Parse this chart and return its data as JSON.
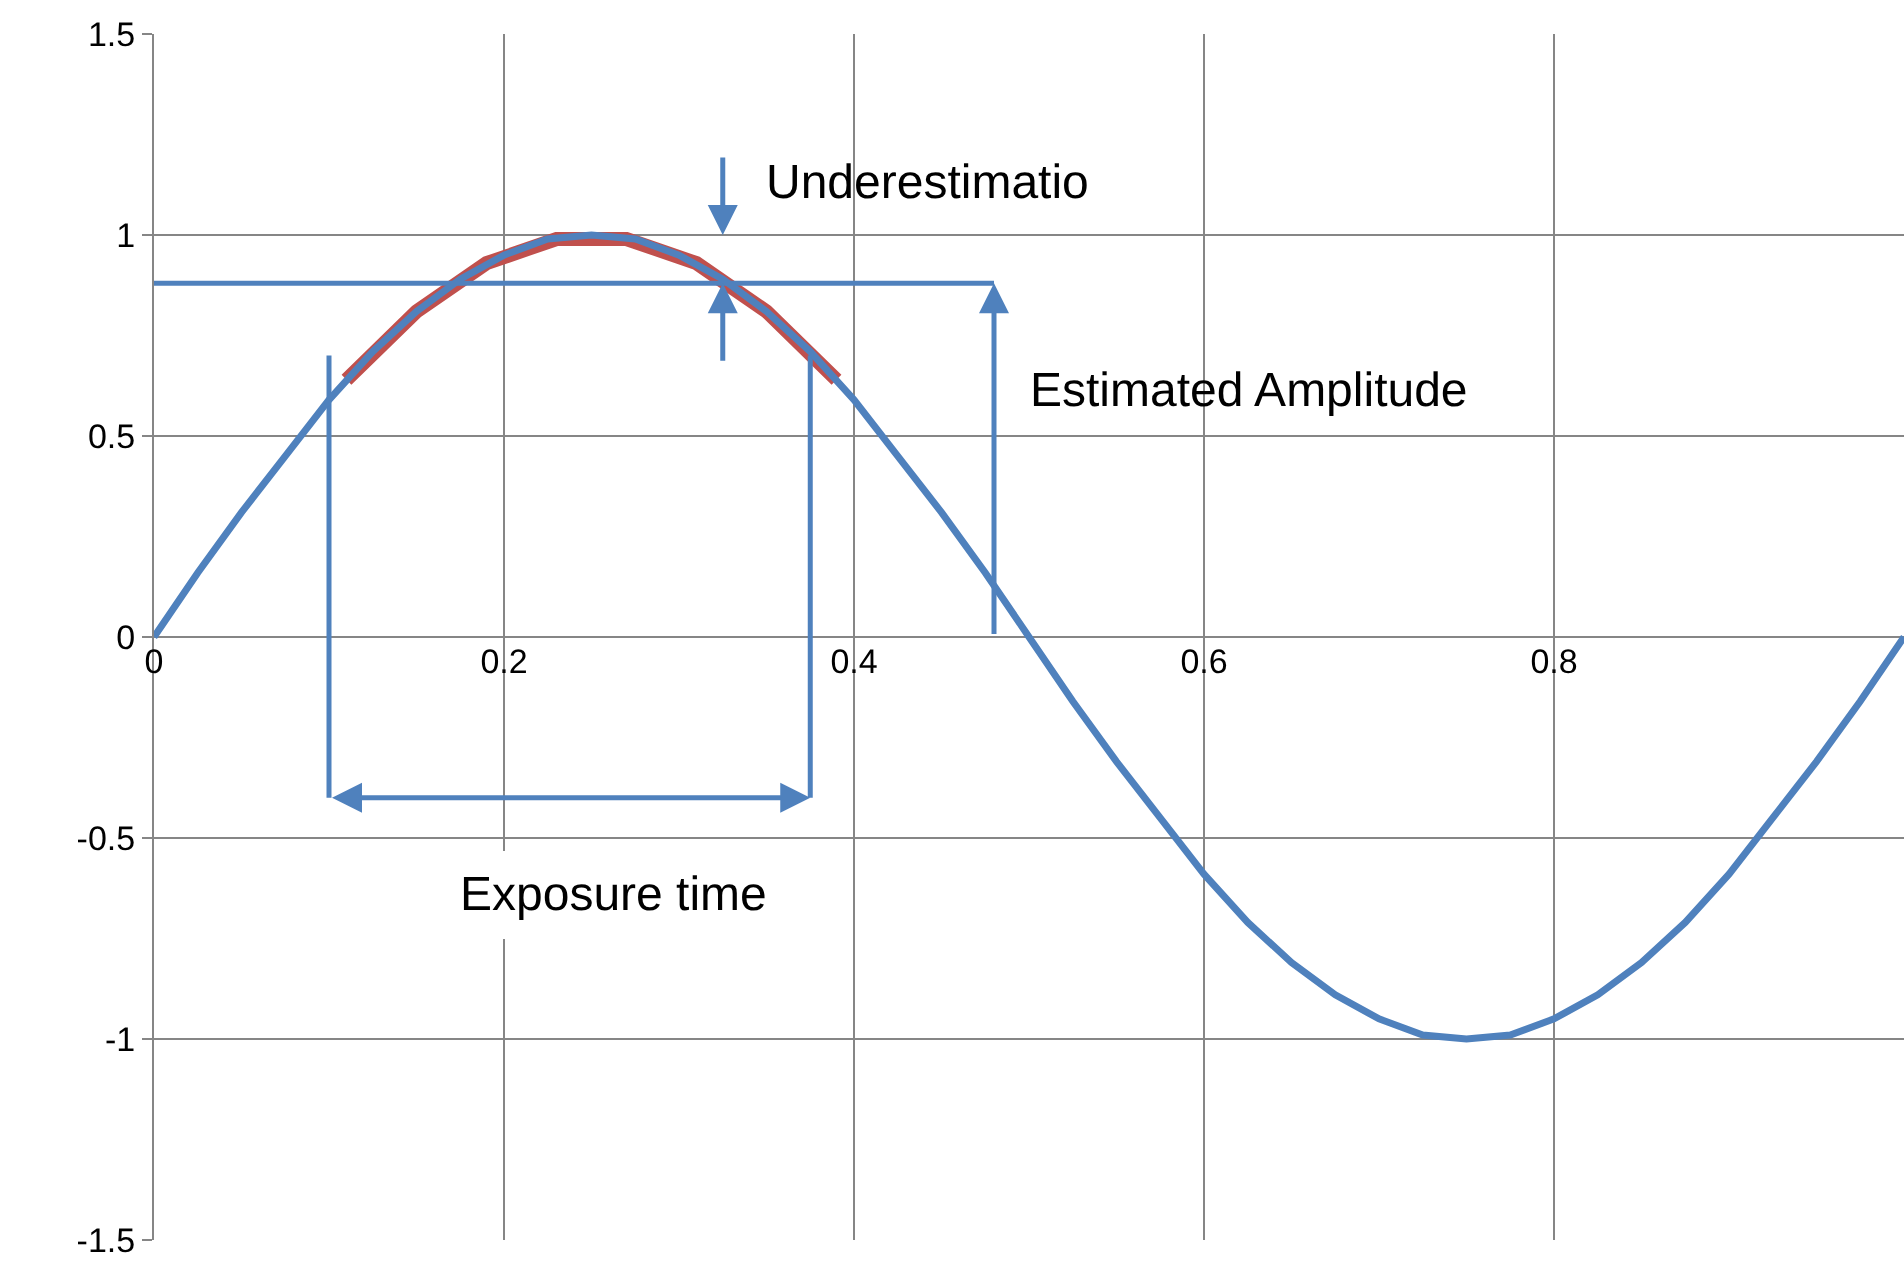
{
  "chart_data": {
    "type": "line",
    "xlim": [
      0,
      1
    ],
    "ylim": [
      -1.5,
      1.5
    ],
    "xticks": [
      0,
      0.2,
      0.4,
      0.6,
      0.8
    ],
    "yticks": [
      -1.5,
      -1,
      -0.5,
      0,
      0.5,
      1,
      1.5
    ],
    "grid": true,
    "marker": "none",
    "line_style": "solid",
    "series": [
      {
        "color": "#4f81bd",
        "x": [
          0,
          0.025,
          0.05,
          0.075,
          0.1,
          0.125,
          0.15,
          0.175,
          0.2,
          0.225,
          0.25,
          0.275,
          0.3,
          0.325,
          0.35,
          0.375,
          0.4,
          0.425,
          0.45,
          0.475,
          0.5,
          0.525,
          0.55,
          0.575,
          0.6,
          0.625,
          0.65,
          0.675,
          0.7,
          0.725,
          0.75,
          0.775,
          0.8,
          0.825,
          0.85,
          0.875,
          0.9,
          0.925,
          0.95,
          0.975,
          1
        ],
        "values": [
          0,
          0.16,
          0.31,
          0.45,
          0.59,
          0.71,
          0.81,
          0.89,
          0.95,
          0.99,
          1,
          0.99,
          0.95,
          0.89,
          0.81,
          0.71,
          0.59,
          0.45,
          0.31,
          0.16,
          0,
          -0.16,
          -0.31,
          -0.45,
          -0.59,
          -0.71,
          -0.81,
          -0.89,
          -0.95,
          -0.99,
          -1,
          -0.99,
          -0.95,
          -0.89,
          -0.81,
          -0.71,
          -0.59,
          -0.45,
          -0.31,
          -0.16,
          0
        ]
      },
      {
        "color": "#c0504d",
        "x": [
          0.11,
          0.15,
          0.19,
          0.23,
          0.27,
          0.31,
          0.35,
          0.39
        ],
        "values": [
          0.64,
          0.81,
          0.93,
          0.99,
          0.99,
          0.93,
          0.81,
          0.64
        ]
      },
      {
        "color": "#4f81bd",
        "x": [
          0,
          0.48
        ],
        "values": [
          0.88,
          0.88
        ]
      },
      {
        "color": "#4f81bd",
        "x": [
          0.1,
          0.1
        ],
        "values": [
          0.7,
          -0.4
        ]
      },
      {
        "color": "#4f81bd",
        "x": [
          0.375,
          0.375
        ],
        "values": [
          0.7,
          -0.4
        ]
      }
    ],
    "annotations": [
      "Underestimatio",
      "Estimated Amplitude",
      "Exposure time"
    ]
  }
}
